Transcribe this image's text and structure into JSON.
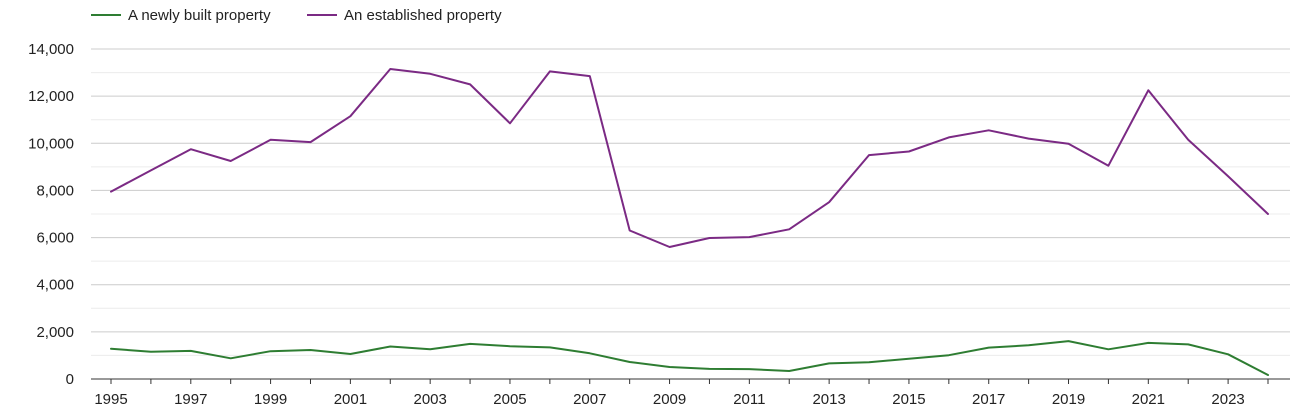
{
  "chart_data": {
    "type": "line",
    "title": "",
    "xlabel": "",
    "ylabel": "",
    "x": [
      1995,
      1996,
      1997,
      1998,
      1999,
      2000,
      2001,
      2002,
      2003,
      2004,
      2005,
      2006,
      2007,
      2008,
      2009,
      2010,
      2011,
      2012,
      2013,
      2014,
      2015,
      2016,
      2017,
      2018,
      2019,
      2020,
      2021,
      2022,
      2023,
      2024
    ],
    "xticks": [
      "1995",
      "1997",
      "1999",
      "2001",
      "2003",
      "2005",
      "2007",
      "2009",
      "2011",
      "2013",
      "2015",
      "2017",
      "2019",
      "2021",
      "2023"
    ],
    "yticks": [
      "0",
      "2,000",
      "4,000",
      "6,000",
      "8,000",
      "10,000",
      "12,000",
      "14,000"
    ],
    "ylim": [
      0,
      14000
    ],
    "xlim": [
      1995,
      2024
    ],
    "grid": true,
    "legend_position": "top-left",
    "series": [
      {
        "name": "A newly built property",
        "color": "#2e7d32",
        "values": [
          1280,
          1160,
          1190,
          880,
          1180,
          1230,
          1060,
          1380,
          1260,
          1490,
          1390,
          1340,
          1090,
          720,
          510,
          430,
          420,
          340,
          660,
          710,
          860,
          1010,
          1330,
          1430,
          1610,
          1260,
          1530,
          1470,
          1050,
          170
        ]
      },
      {
        "name": "An established property",
        "color": "#7b2a84",
        "values": [
          7950,
          8850,
          9750,
          9250,
          10150,
          10050,
          11150,
          13150,
          12950,
          12500,
          10850,
          13050,
          12850,
          6300,
          5600,
          5980,
          6020,
          6350,
          7500,
          9500,
          9650,
          10250,
          10550,
          10200,
          9980,
          9050,
          12250,
          10150,
          8600,
          7000
        ]
      }
    ]
  }
}
